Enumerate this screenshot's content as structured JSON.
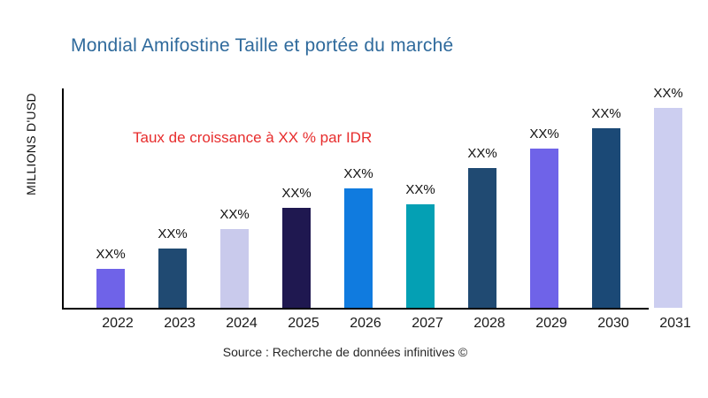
{
  "chart_data": {
    "type": "bar",
    "title": "Mondial Amifostine Taille et portée du marché",
    "title_color": "#2F6A9C",
    "ylabel": "MILLIONS D'USD",
    "xlabel": "",
    "categories": [
      "2022",
      "2023",
      "2024",
      "2025",
      "2026",
      "2027",
      "2028",
      "2029",
      "2030",
      "2031"
    ],
    "values": [
      44,
      67,
      89,
      113,
      135,
      117,
      158,
      180,
      203,
      226
    ],
    "ylim": [
      0,
      250
    ],
    "grid": false,
    "numeric_axis_labels": false,
    "bar_labels": [
      "XX%",
      "XX%",
      "XX%",
      "XX%",
      "XX%",
      "XX%",
      "XX%",
      "XX%",
      "XX%",
      "XX%"
    ],
    "bar_colors": [
      "#6F63E8",
      "#204A72",
      "#C9CAEC",
      "#1F1850",
      "#107BDF",
      "#04A0B4",
      "#204A72",
      "#6F63E8",
      "#1B4976",
      "#CCCEF0"
    ],
    "axis_color": "#000000",
    "annotation": {
      "text": "Taux de croissance à XX % par IDR",
      "color": "#E72D2D"
    },
    "source": "Source : Recherche de données infinitives ©"
  }
}
